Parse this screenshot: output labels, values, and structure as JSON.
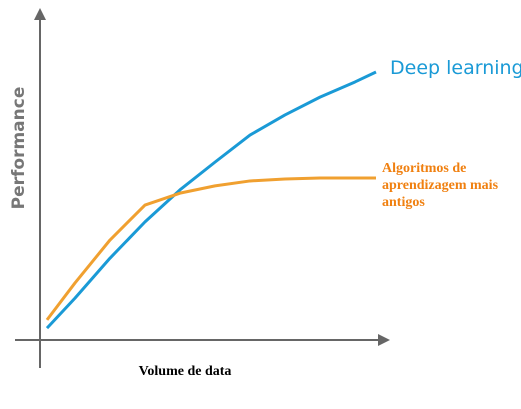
{
  "chart_data": {
    "type": "line",
    "x_label": "Volume de data",
    "y_label": "Performance",
    "x": [
      0.2,
      1,
      2,
      3,
      4,
      5,
      6,
      7,
      8,
      9,
      9.6
    ],
    "xlim": [
      0,
      10
    ],
    "ylim": [
      0,
      10
    ],
    "series": [
      {
        "name": "Deep learning",
        "color": "#1a9ad6",
        "values": [
          0.36,
          1.27,
          2.48,
          3.58,
          4.55,
          5.39,
          6.21,
          6.82,
          7.36,
          7.82,
          8.12
        ]
      },
      {
        "name": "Algoritmos de aprendizagem mais antigos",
        "color": "#f0a030",
        "values": [
          0.61,
          1.73,
          3.03,
          4.09,
          4.45,
          4.67,
          4.82,
          4.88,
          4.91,
          4.91,
          4.91
        ]
      }
    ]
  }
}
